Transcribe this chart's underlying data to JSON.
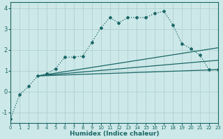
{
  "xlabel": "Humidex (Indice chaleur)",
  "background_color": "#cde8e8",
  "grid_color": "#aacccc",
  "line_color": "#1a6666",
  "xlim": [
    0,
    23
  ],
  "ylim": [
    -1.5,
    4.3
  ],
  "yticks": [
    -1,
    0,
    1,
    2,
    3,
    4
  ],
  "xticks": [
    0,
    1,
    2,
    3,
    4,
    5,
    6,
    7,
    8,
    9,
    10,
    11,
    12,
    13,
    14,
    15,
    16,
    17,
    18,
    19,
    20,
    21,
    22,
    23
  ],
  "curve_x": [
    0,
    1,
    2,
    3,
    4,
    5,
    6,
    7,
    8,
    9,
    10,
    11,
    12,
    13,
    14,
    15,
    16,
    17,
    18,
    19,
    20,
    21,
    22,
    23
  ],
  "curve_y": [
    -1.3,
    -0.15,
    0.25,
    0.75,
    0.85,
    1.1,
    1.65,
    1.65,
    1.7,
    2.35,
    3.05,
    3.55,
    3.3,
    3.55,
    3.55,
    3.55,
    3.75,
    3.85,
    3.2,
    2.3,
    2.05,
    1.75,
    1.05,
    1.05
  ],
  "line1_x": [
    3,
    23
  ],
  "line1_y": [
    0.75,
    2.1
  ],
  "line2_x": [
    3,
    23
  ],
  "line2_y": [
    0.75,
    1.05
  ],
  "line3_x": [
    3,
    23
  ],
  "line3_y": [
    0.75,
    1.5
  ],
  "line_width": 0.9,
  "marker": "D",
  "marker_size": 2.0
}
